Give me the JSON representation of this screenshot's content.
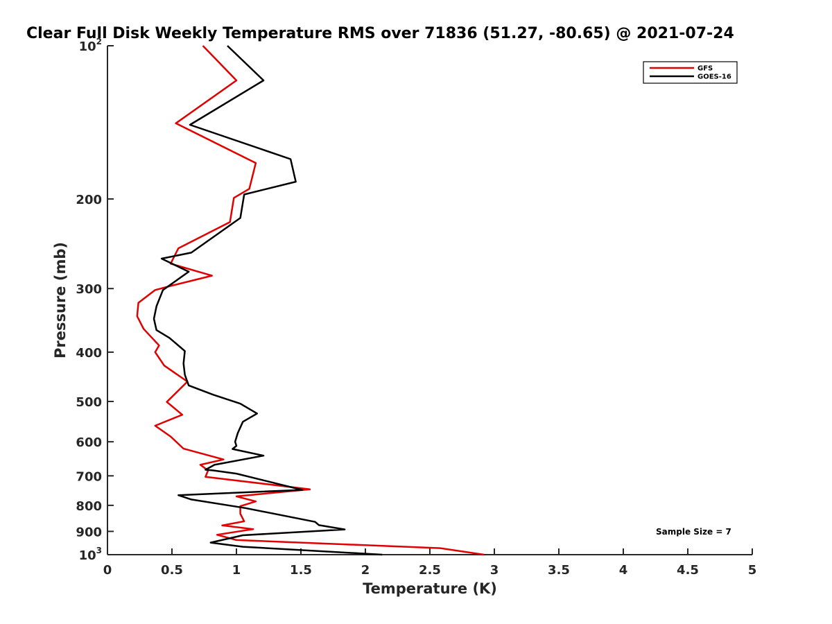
{
  "chart_data": {
    "type": "line",
    "title": "Clear Full Disk Weekly Temperature RMS over 71836 (51.27, -80.65) @ 2021-07-24",
    "xlabel": "Temperature (K)",
    "ylabel": "Pressure (mb)",
    "xlim": [
      0,
      5
    ],
    "ylim": [
      100,
      1000
    ],
    "y_scale": "log",
    "y_reversed": true,
    "grid": false,
    "legend_position": "top-right",
    "x_ticks": [
      {
        "value": 0,
        "label": "0"
      },
      {
        "value": 0.5,
        "label": "0.5"
      },
      {
        "value": 1,
        "label": "1"
      },
      {
        "value": 1.5,
        "label": "1.5"
      },
      {
        "value": 2,
        "label": "2"
      },
      {
        "value": 2.5,
        "label": "2.5"
      },
      {
        "value": 3,
        "label": "3"
      },
      {
        "value": 3.5,
        "label": "3.5"
      },
      {
        "value": 4,
        "label": "4"
      },
      {
        "value": 4.5,
        "label": "4.5"
      },
      {
        "value": 5,
        "label": "5"
      }
    ],
    "y_ticks": [
      {
        "value": 100,
        "label": "10",
        "sup": "2"
      },
      {
        "value": 200,
        "label": "200",
        "sup": ""
      },
      {
        "value": 300,
        "label": "300",
        "sup": ""
      },
      {
        "value": 400,
        "label": "400",
        "sup": ""
      },
      {
        "value": 500,
        "label": "500",
        "sup": ""
      },
      {
        "value": 600,
        "label": "600",
        "sup": ""
      },
      {
        "value": 700,
        "label": "700",
        "sup": ""
      },
      {
        "value": 800,
        "label": "800",
        "sup": ""
      },
      {
        "value": 900,
        "label": "900",
        "sup": ""
      },
      {
        "value": 1000,
        "label": "10",
        "sup": "3"
      }
    ],
    "series": [
      {
        "name": "GFS",
        "color": "#e00000",
        "points": [
          [
            0.74,
            100
          ],
          [
            1.0,
            117
          ],
          [
            0.53,
            142
          ],
          [
            1.15,
            170
          ],
          [
            1.1,
            191
          ],
          [
            0.98,
            199
          ],
          [
            0.95,
            222
          ],
          [
            0.55,
            250
          ],
          [
            0.49,
            268
          ],
          [
            0.81,
            283
          ],
          [
            0.5,
            296
          ],
          [
            0.37,
            302
          ],
          [
            0.24,
            320
          ],
          [
            0.23,
            340
          ],
          [
            0.28,
            360
          ],
          [
            0.4,
            388
          ],
          [
            0.37,
            400
          ],
          [
            0.44,
            425
          ],
          [
            0.62,
            457
          ],
          [
            0.46,
            501
          ],
          [
            0.58,
            531
          ],
          [
            0.37,
            558
          ],
          [
            0.49,
            586
          ],
          [
            0.59,
            619
          ],
          [
            0.9,
            650
          ],
          [
            0.72,
            666
          ],
          [
            0.78,
            683
          ],
          [
            0.76,
            703
          ],
          [
            1.57,
            744
          ],
          [
            1.0,
            768
          ],
          [
            1.15,
            786
          ],
          [
            1.03,
            803
          ],
          [
            1.03,
            831
          ],
          [
            1.06,
            860
          ],
          [
            0.89,
            876
          ],
          [
            1.13,
            891
          ],
          [
            0.85,
            914
          ],
          [
            1.0,
            936
          ],
          [
            2.58,
            971
          ],
          [
            2.92,
            1000
          ]
        ]
      },
      {
        "name": "GOES-16",
        "color": "#000000",
        "points": [
          [
            0.93,
            100
          ],
          [
            1.21,
            117
          ],
          [
            0.64,
            143
          ],
          [
            1.42,
            167
          ],
          [
            1.46,
            185
          ],
          [
            1.06,
            196
          ],
          [
            1.03,
            218
          ],
          [
            0.65,
            255
          ],
          [
            0.42,
            262
          ],
          [
            0.63,
            278
          ],
          [
            0.43,
            302
          ],
          [
            0.38,
            325
          ],
          [
            0.36,
            344
          ],
          [
            0.38,
            362
          ],
          [
            0.48,
            375
          ],
          [
            0.6,
            398
          ],
          [
            0.59,
            421
          ],
          [
            0.6,
            443
          ],
          [
            0.63,
            465
          ],
          [
            0.82,
            485
          ],
          [
            1.03,
            505
          ],
          [
            1.16,
            528
          ],
          [
            1.05,
            548
          ],
          [
            1.01,
            577
          ],
          [
            0.99,
            600
          ],
          [
            1.0,
            611
          ],
          [
            0.97,
            620
          ],
          [
            1.21,
            639
          ],
          [
            0.83,
            666
          ],
          [
            0.76,
            681
          ],
          [
            0.82,
            683
          ],
          [
            1.0,
            693
          ],
          [
            1.51,
            746
          ],
          [
            0.55,
            764
          ],
          [
            0.65,
            779
          ],
          [
            1.07,
            810
          ],
          [
            1.61,
            862
          ],
          [
            1.64,
            875
          ],
          [
            1.84,
            892
          ],
          [
            1.05,
            916
          ],
          [
            0.8,
            947
          ],
          [
            1.05,
            965
          ],
          [
            2.13,
            1000
          ]
        ]
      }
    ],
    "annotation": "Sample Size = 7"
  }
}
